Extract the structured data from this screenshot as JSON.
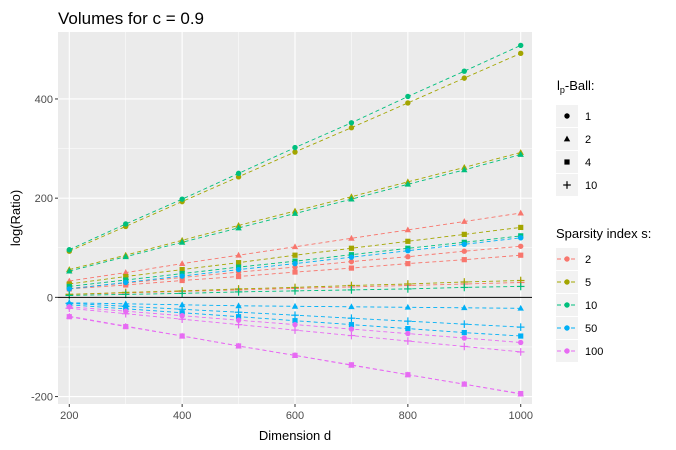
{
  "chart_data": {
    "type": "line",
    "title": "Volumes for c = 0.9",
    "xlabel": "Dimension d",
    "ylabel": "log(Ratio)",
    "xlim": [
      180,
      1020
    ],
    "ylim": [
      -215,
      535
    ],
    "x_ticks": [
      200,
      400,
      600,
      800,
      1000
    ],
    "y_ticks": [
      -200,
      0,
      200,
      400
    ],
    "x": [
      200,
      300,
      400,
      500,
      600,
      700,
      800,
      900,
      1000
    ],
    "hline": 0,
    "shape_legend": {
      "title_main": "l",
      "title_sub": "p",
      "title_rest": "-Ball:",
      "items": [
        {
          "label": "1",
          "shape": "circle"
        },
        {
          "label": "2",
          "shape": "triangle"
        },
        {
          "label": "4",
          "shape": "square"
        },
        {
          "label": "10",
          "shape": "plus"
        }
      ]
    },
    "color_legend": {
      "title": "Sparsity index s:",
      "items": [
        {
          "label": "2",
          "color": "#F8766D"
        },
        {
          "label": "5",
          "color": "#A3A500"
        },
        {
          "label": "10",
          "color": "#00BF7D"
        },
        {
          "label": "50",
          "color": "#00B0F6"
        },
        {
          "label": "100",
          "color": "#E76BF3"
        }
      ]
    },
    "series": [
      {
        "s": "2",
        "ball": "1",
        "color": "#F8766D",
        "shape": "circle",
        "values": [
          18,
          29,
          40,
          51,
          61,
          72,
          82,
          93,
          103
        ]
      },
      {
        "s": "2",
        "ball": "2",
        "color": "#F8766D",
        "shape": "triangle",
        "values": [
          33,
          50,
          68,
          85,
          102,
          119,
          136,
          153,
          170
        ]
      },
      {
        "s": "2",
        "ball": "4",
        "color": "#F8766D",
        "shape": "square",
        "values": [
          17,
          25,
          34,
          42,
          51,
          59,
          68,
          76,
          85
        ]
      },
      {
        "s": "2",
        "ball": "10",
        "color": "#F8766D",
        "shape": "plus",
        "values": [
          6,
          9,
          12,
          15,
          18,
          21,
          24,
          27,
          30
        ]
      },
      {
        "s": "5",
        "ball": "1",
        "color": "#A3A500",
        "shape": "circle",
        "values": [
          93,
          143,
          193,
          243,
          293,
          342,
          392,
          442,
          492
        ]
      },
      {
        "s": "5",
        "ball": "2",
        "color": "#A3A500",
        "shape": "triangle",
        "values": [
          56,
          85,
          115,
          145,
          174,
          203,
          233,
          262,
          292
        ]
      },
      {
        "s": "5",
        "ball": "4",
        "color": "#A3A500",
        "shape": "square",
        "values": [
          27,
          42,
          56,
          70,
          85,
          99,
          113,
          127,
          141
        ]
      },
      {
        "s": "5",
        "ball": "10",
        "color": "#A3A500",
        "shape": "plus",
        "values": [
          6,
          10,
          13,
          17,
          20,
          24,
          27,
          31,
          34
        ]
      },
      {
        "s": "10",
        "ball": "1",
        "color": "#00BF7D",
        "shape": "circle",
        "values": [
          96,
          148,
          198,
          250,
          302,
          352,
          405,
          456,
          508
        ]
      },
      {
        "s": "10",
        "ball": "2",
        "color": "#00BF7D",
        "shape": "triangle",
        "values": [
          53,
          82,
          111,
          140,
          169,
          198,
          228,
          257,
          288
        ]
      },
      {
        "s": "10",
        "ball": "4",
        "color": "#00BF7D",
        "shape": "square",
        "values": [
          22,
          35,
          48,
          61,
          73,
          86,
          99,
          111,
          124
        ]
      },
      {
        "s": "10",
        "ball": "10",
        "color": "#00BF7D",
        "shape": "plus",
        "values": [
          4,
          6,
          8,
          11,
          13,
          15,
          17,
          20,
          22
        ]
      },
      {
        "s": "50",
        "ball": "1",
        "color": "#00B0F6",
        "shape": "circle",
        "values": [
          17,
          30,
          43,
          56,
          68,
          81,
          94,
          107,
          120
        ]
      },
      {
        "s": "50",
        "ball": "2",
        "color": "#00B0F6",
        "shape": "triangle",
        "values": [
          -11,
          -13,
          -15,
          -17,
          -18,
          -19,
          -20,
          -21,
          -22
        ]
      },
      {
        "s": "50",
        "ball": "4",
        "color": "#00B0F6",
        "shape": "square",
        "values": [
          -15,
          -23,
          -31,
          -39,
          -47,
          -55,
          -63,
          -71,
          -78
        ]
      },
      {
        "s": "50",
        "ball": "10",
        "color": "#00B0F6",
        "shape": "plus",
        "values": [
          -12,
          -18,
          -24,
          -30,
          -36,
          -42,
          -48,
          -54,
          -60
        ]
      },
      {
        "s": "100",
        "ball": "1",
        "color": "#E76BF3",
        "shape": "circle",
        "values": [
          -19,
          -28,
          -37,
          -46,
          -55,
          -64,
          -73,
          -82,
          -91
        ]
      },
      {
        "s": "100",
        "ball": "2",
        "color": "#E76BF3",
        "shape": "triangle",
        "values": [
          -38,
          -58,
          -78,
          -98,
          -117,
          -137,
          -156,
          -175,
          -195
        ]
      },
      {
        "s": "100",
        "ball": "4",
        "color": "#E76BF3",
        "shape": "square",
        "values": [
          -39,
          -59,
          -78,
          -98,
          -117,
          -136,
          -156,
          -175,
          -194
        ]
      },
      {
        "s": "100",
        "ball": "10",
        "color": "#E76BF3",
        "shape": "plus",
        "values": [
          -22,
          -33,
          -44,
          -55,
          -66,
          -77,
          -88,
          -99,
          -110
        ]
      }
    ]
  }
}
